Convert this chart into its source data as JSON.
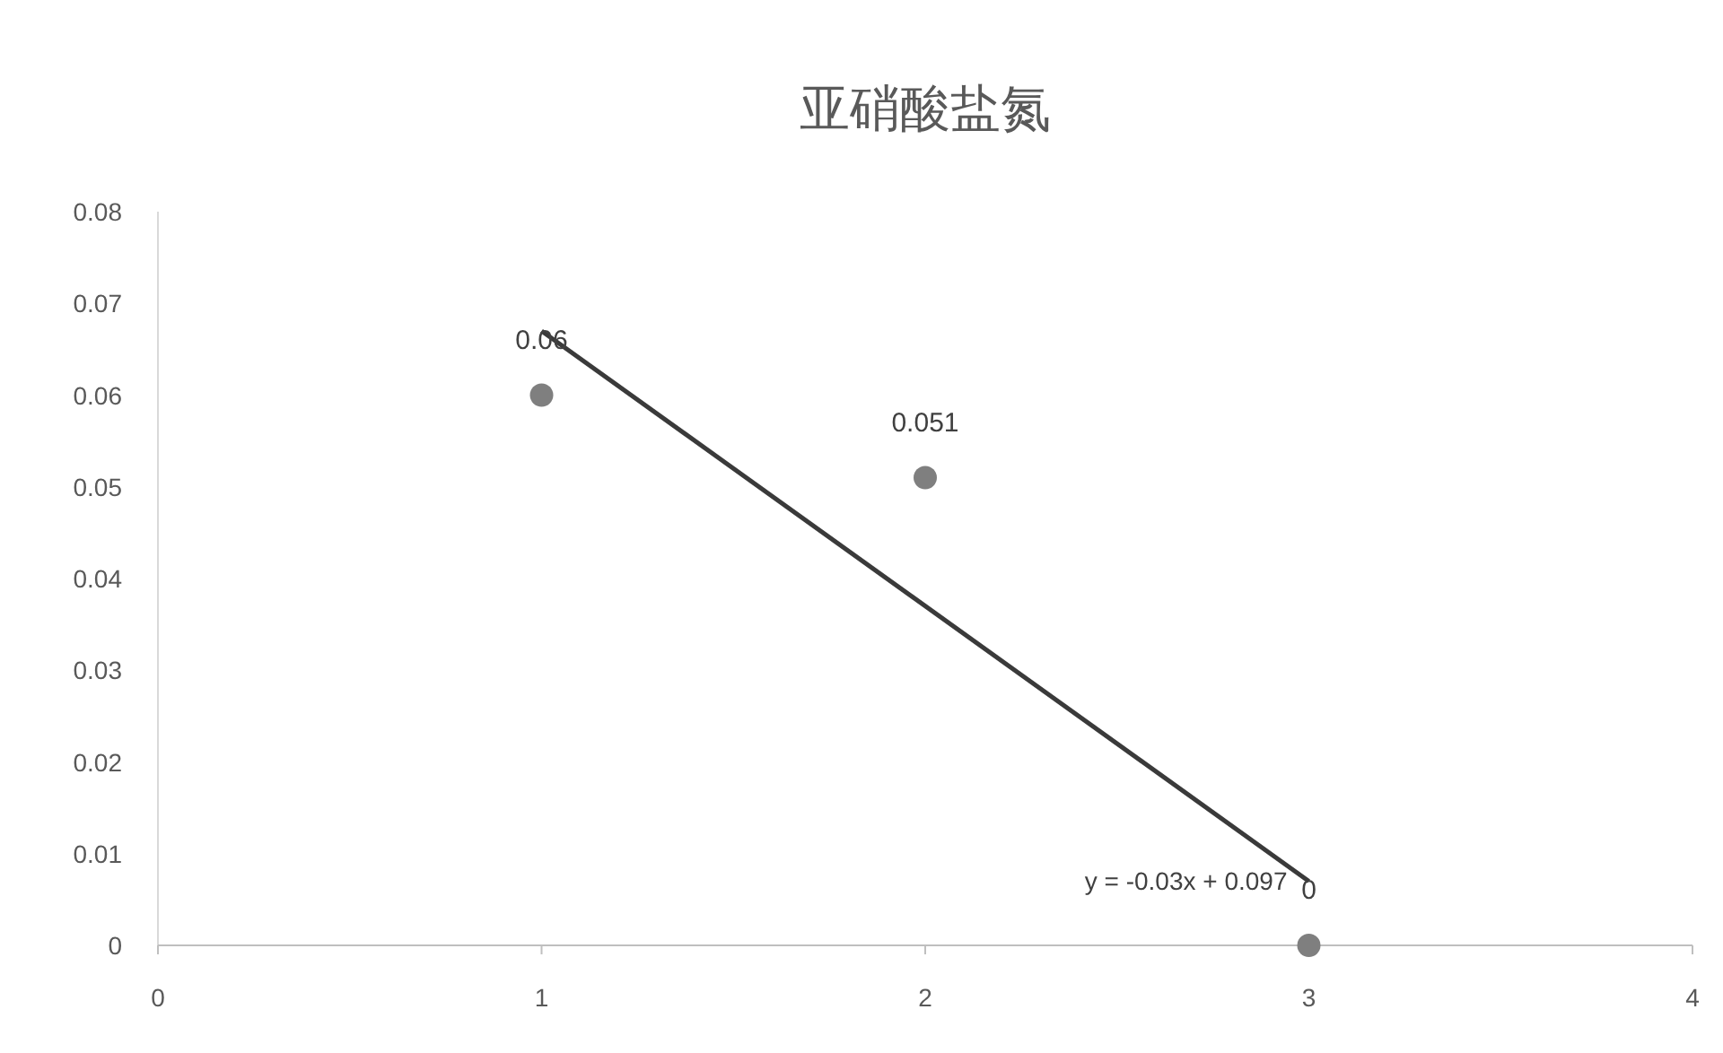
{
  "chart_data": {
    "type": "scatter",
    "title": "亚硝酸盐氮",
    "x": [
      1,
      2,
      3
    ],
    "series": [
      {
        "marker": "circle",
        "color": "#7f7f7f",
        "values": [
          0.06,
          0.051,
          0
        ],
        "value_labels": [
          "0.06",
          "0.051",
          "0"
        ]
      },
      {
        "type": "line",
        "color": "#3a3a3a",
        "x": [
          1,
          3
        ],
        "values": [
          0.067,
          0.007
        ]
      }
    ],
    "xlim": [
      0,
      4
    ],
    "xticks": [
      0,
      1,
      2,
      3,
      4
    ],
    "ylim": [
      0,
      0.08
    ],
    "yticks": [
      0,
      0.01,
      0.02,
      0.03,
      0.04,
      0.05,
      0.06,
      0.07,
      0.08
    ],
    "annotations": [
      {
        "text": "y = -0.03x + 0.097",
        "x": 3,
        "y": 0.007
      }
    ]
  }
}
